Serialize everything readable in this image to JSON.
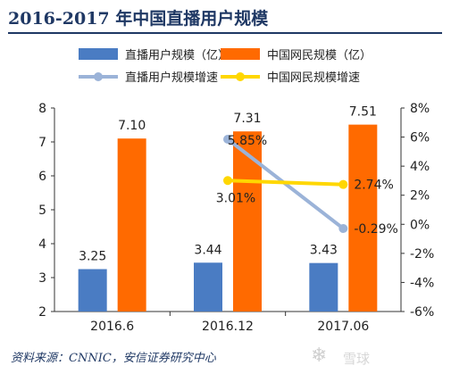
{
  "title": "2016-2017 年中国直播用户规模",
  "source": "资料来源：CNNIC，安信证券研究中心",
  "watermark": {
    "text": "雪球",
    "icon": "snowball-logo-icon"
  },
  "colors": {
    "bar_live": "#4a7cc3",
    "bar_net": "#ff6a00",
    "line_live": "#9bb3d8",
    "line_net": "#ffd700",
    "title": "#1f3864",
    "axis": "#333333"
  },
  "chart_data": {
    "type": "bar",
    "categories": [
      "2016.6",
      "2016.12",
      "2017.06"
    ],
    "series": [
      {
        "name": "直播用户规模（亿）",
        "kind": "bar",
        "axis": "left",
        "values": [
          3.25,
          3.44,
          3.43
        ],
        "labels": [
          "3.25",
          "3.44",
          "3.43"
        ]
      },
      {
        "name": "中国网民规模（亿）",
        "kind": "bar",
        "axis": "left",
        "values": [
          7.1,
          7.31,
          7.51
        ],
        "labels": [
          "7.10",
          "7.31",
          "7.51"
        ]
      },
      {
        "name": "直播用户规模增速",
        "kind": "line",
        "axis": "right",
        "x": [
          "2016.12",
          "2017.06"
        ],
        "values": [
          5.85,
          -0.29
        ],
        "labels": [
          "5.85%",
          "-0.29%"
        ]
      },
      {
        "name": "中国网民规模增速",
        "kind": "line",
        "axis": "right",
        "x": [
          "2016.12",
          "2017.06"
        ],
        "values": [
          3.01,
          2.74
        ],
        "labels": [
          "3.01%",
          "2.74%"
        ]
      }
    ],
    "ylim": [
      2,
      8
    ],
    "yticks": [
      "2",
      "3",
      "4",
      "5",
      "6",
      "7",
      "8"
    ],
    "y2lim": [
      -6,
      8
    ],
    "y2ticks": [
      "8%",
      "6%",
      "4%",
      "2%",
      "0%",
      "-2%",
      "-4%",
      "-6%"
    ],
    "legend_position": "top",
    "grid": false
  }
}
